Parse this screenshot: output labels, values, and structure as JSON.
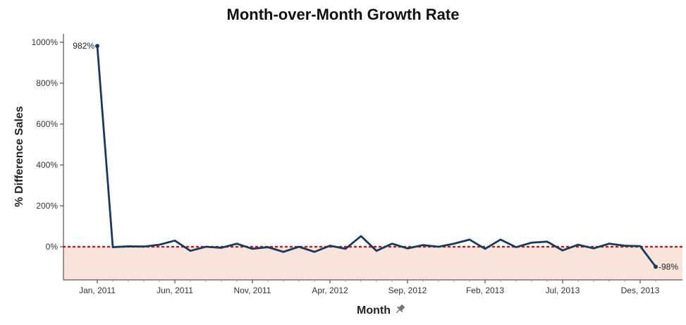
{
  "chart_data": {
    "type": "line",
    "title": "Month-over-Month Growth Rate",
    "xlabel": "Month",
    "ylabel": "% Difference Sales",
    "ylim": [
      -150,
      1040
    ],
    "y_ticks": [
      0,
      200,
      400,
      600,
      800,
      1000
    ],
    "y_tick_labels": [
      "0%",
      "200%",
      "400%",
      "600%",
      "800%",
      "1000%"
    ],
    "x_ticks": [
      "2011-01",
      "2011-06",
      "2011-11",
      "2012-04",
      "2012-09",
      "2013-02",
      "2013-07",
      "2013-12"
    ],
    "x_tick_labels": [
      "Jan, 2011",
      "Jun, 2011",
      "Nov, 2011",
      "Apr, 2012",
      "Sep, 2012",
      "Feb, 2013",
      "Jul, 2013",
      "Des, 2013"
    ],
    "x": [
      "2011-01",
      "2011-02",
      "2011-03",
      "2011-04",
      "2011-05",
      "2011-06",
      "2011-07",
      "2011-08",
      "2011-09",
      "2011-10",
      "2011-11",
      "2011-12",
      "2012-01",
      "2012-02",
      "2012-03",
      "2012-04",
      "2012-05",
      "2012-06",
      "2012-07",
      "2012-08",
      "2012-09",
      "2012-10",
      "2012-11",
      "2012-12",
      "2013-01",
      "2013-02",
      "2013-03",
      "2013-04",
      "2013-05",
      "2013-06",
      "2013-07",
      "2013-08",
      "2013-09",
      "2013-10",
      "2013-11",
      "2013-12",
      "2014-01"
    ],
    "values": [
      982,
      -2,
      2,
      1,
      10,
      30,
      -20,
      0,
      -5,
      15,
      -10,
      -2,
      -25,
      0,
      -25,
      5,
      -10,
      52,
      -20,
      15,
      -8,
      8,
      0,
      15,
      35,
      -10,
      35,
      -2,
      20,
      25,
      -18,
      10,
      -8,
      15,
      5,
      3,
      -98
    ],
    "point_labels": [
      {
        "index": 0,
        "text": "982%",
        "position": "left"
      },
      {
        "index": 36,
        "text": "-98%",
        "position": "right"
      }
    ],
    "reference_line": {
      "value": 0,
      "style": "dotted",
      "color": "#b22222"
    },
    "negative_band_color": "#f9e4dc",
    "line_color": "#1a3a5c",
    "grid": false
  },
  "pin_icon": "pin-icon"
}
